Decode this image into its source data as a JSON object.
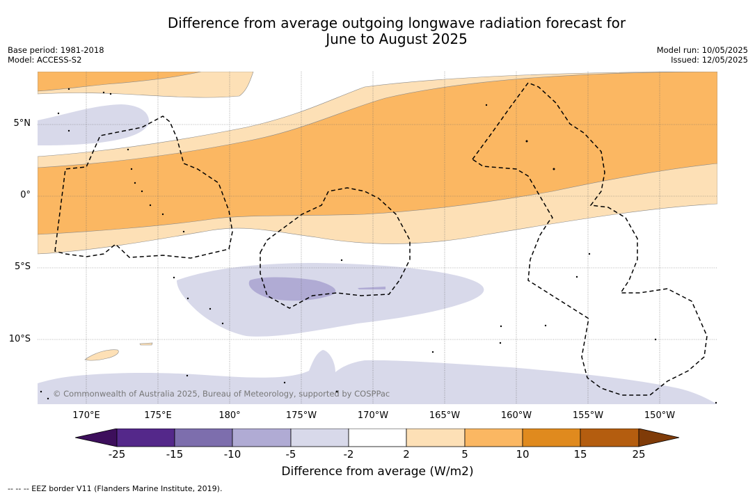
{
  "title": {
    "line1": "Difference from average outgoing longwave radiation forecast for",
    "line2": "June to August 2025"
  },
  "info_left": {
    "base_period": "Base period: 1981-2018",
    "model": "Model: ACCESS-S2"
  },
  "info_right": {
    "model_run": "Model run: 10/05/2025",
    "issued": "Issued: 12/05/2025"
  },
  "map": {
    "lat_labels": [
      "5°N",
      "0°",
      "5°S",
      "10°S"
    ],
    "lon_labels": [
      "170°E",
      "175°E",
      "180°",
      "175°W",
      "170°W",
      "165°W",
      "160°W",
      "155°W",
      "150°W"
    ],
    "copyright": "© Commonwealth of Australia 2025, Bureau of Meteorology, supported by COSPPac"
  },
  "colorbar": {
    "ticks": [
      "-25",
      "-15",
      "-10",
      "-5",
      "-2",
      "2",
      "5",
      "10",
      "15",
      "25"
    ],
    "colors": {
      "below_-25": "#3d0f5c",
      "-25_-15": "#54288a",
      "-15_-10": "#7d6ead",
      "-10_-5": "#b0abd4",
      "-5_-2": "#d8d9ea",
      "-2_2": "#ffffff",
      "2_5": "#fde0b6",
      "5_10": "#fbb762",
      "10_15": "#e08a1e",
      "15_25": "#b45d0f",
      "above_25": "#7f3b08"
    },
    "label": "Difference from average (W/m2)"
  },
  "footnote": "--  --  -- EEZ border V11 (Flanders Marine Institute, 2019)."
}
